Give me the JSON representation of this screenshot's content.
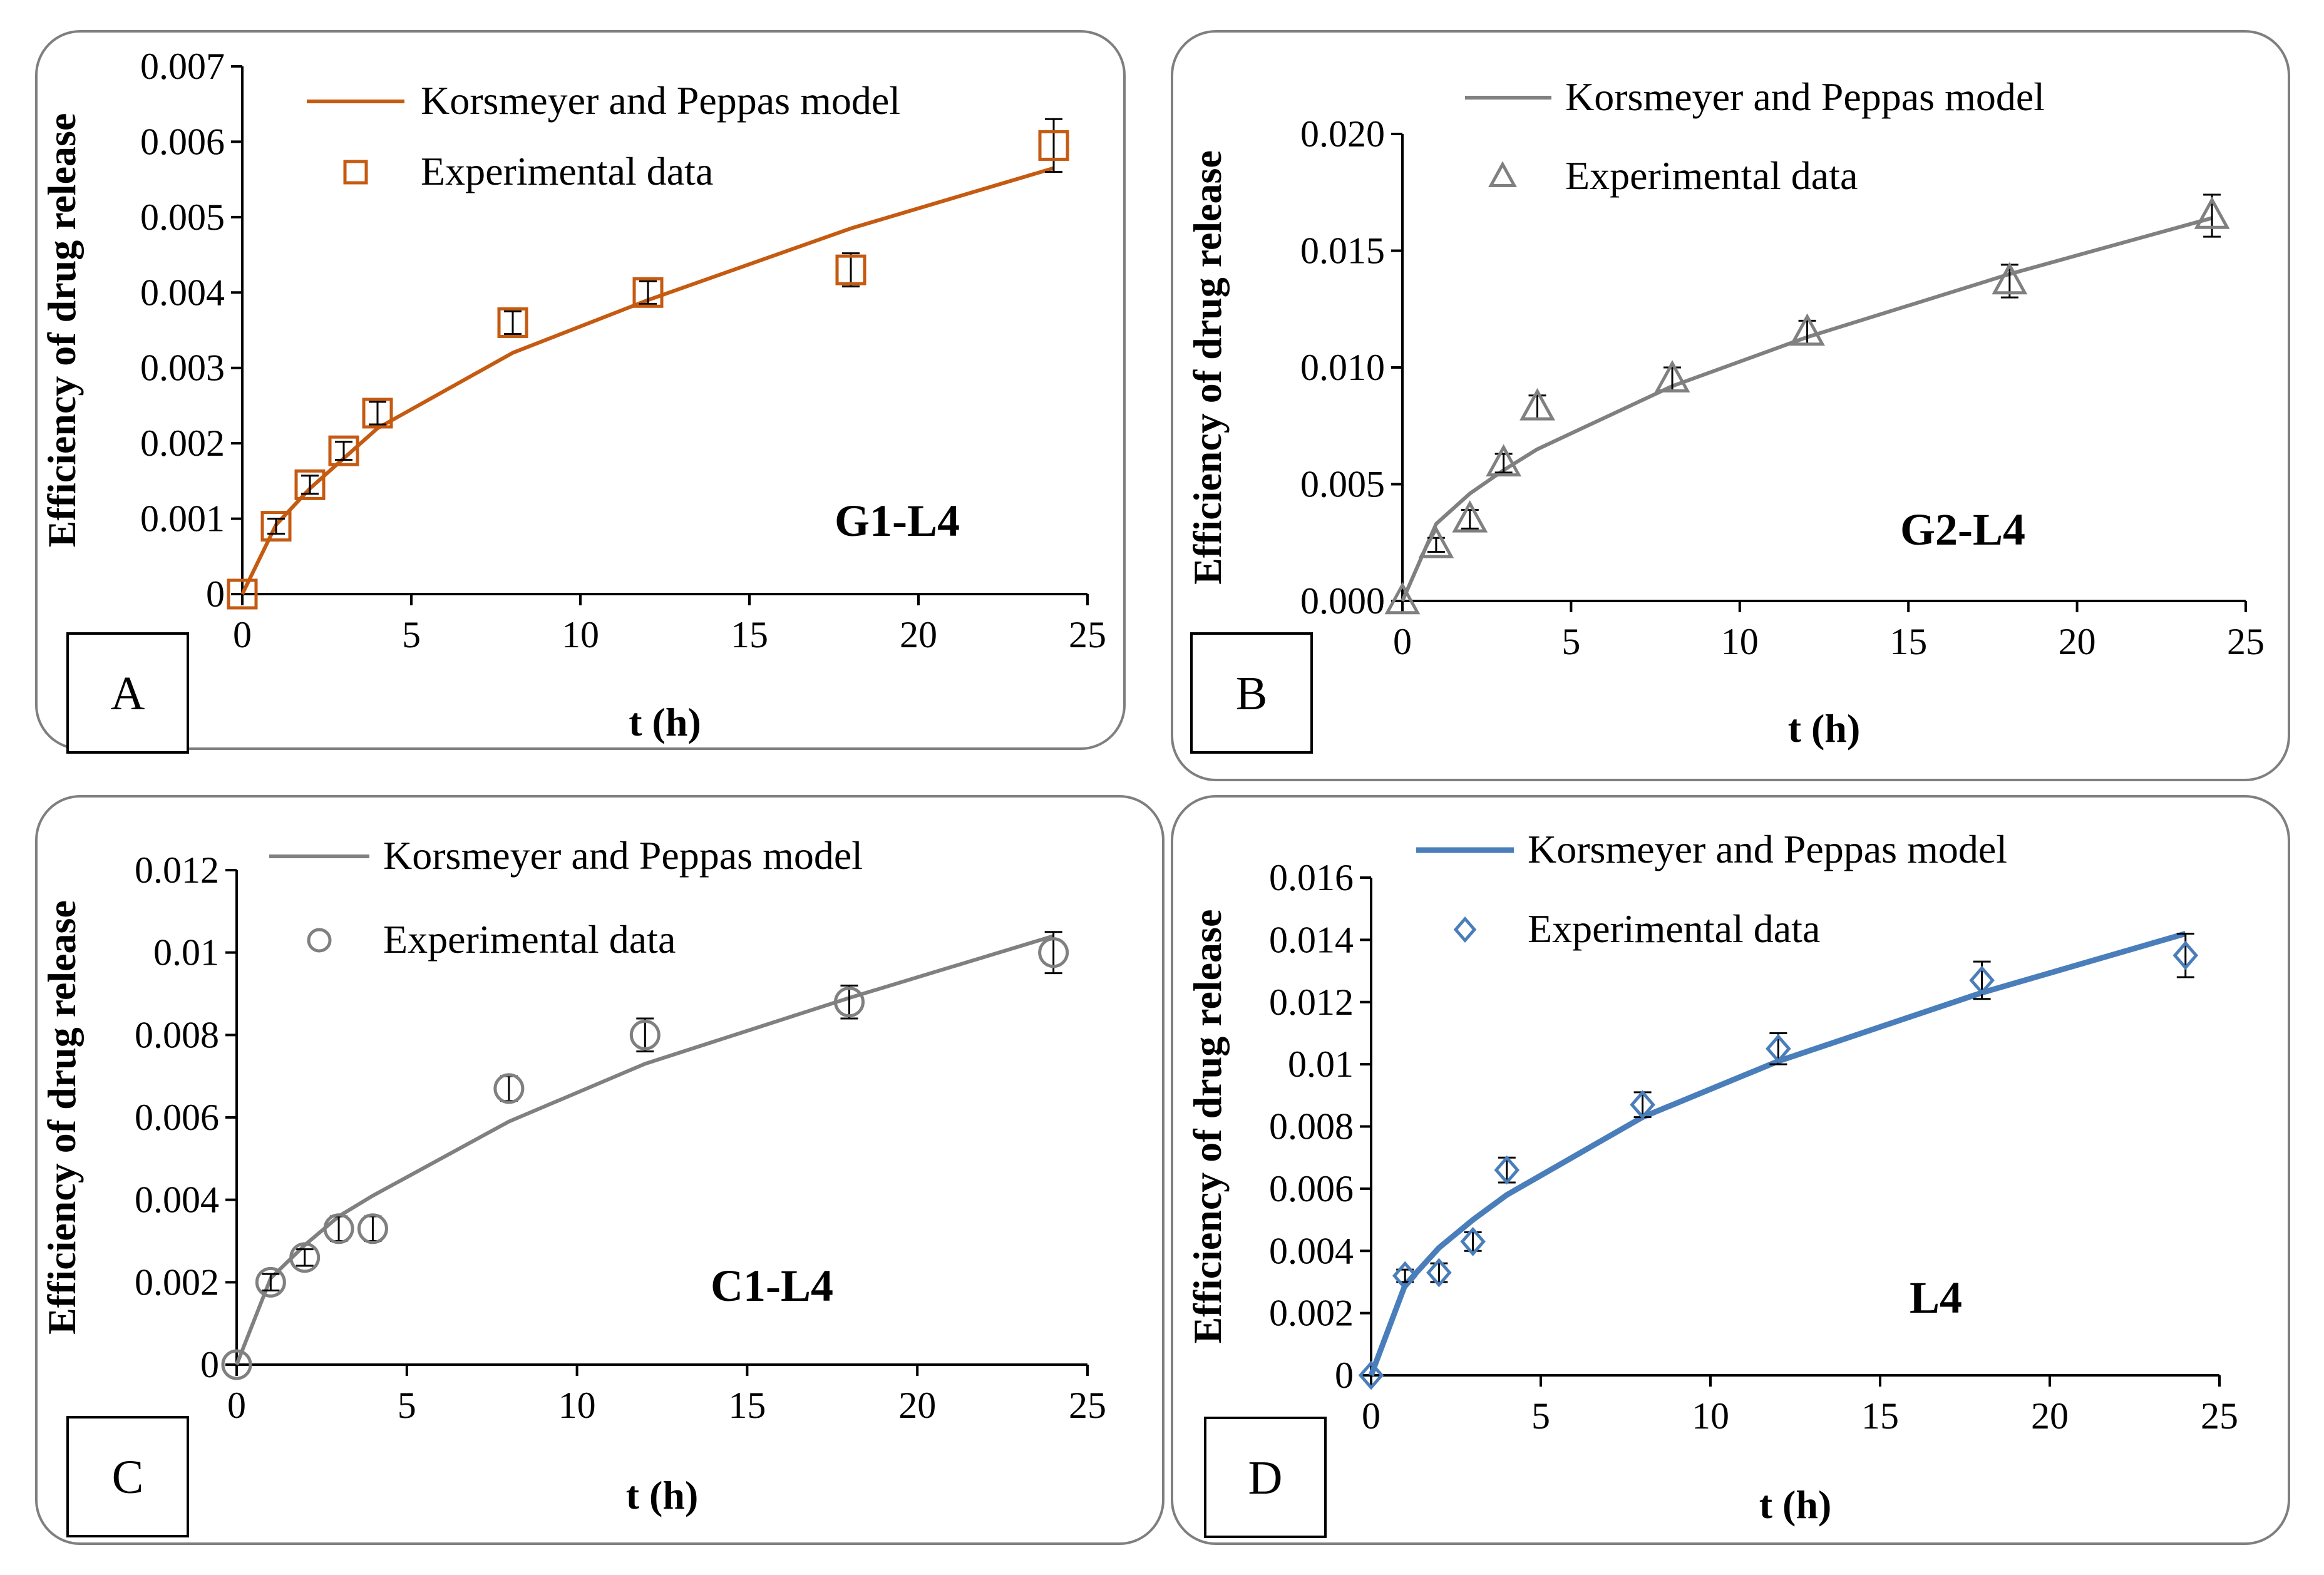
{
  "chart_data": [
    {
      "type": "line",
      "panel_label": "A",
      "sample_label": "G1-L4",
      "title": "",
      "xlabel": "t (h)",
      "ylabel": "Efficiency of drug release",
      "xlim": [
        0,
        25
      ],
      "ylim": [
        0,
        0.007
      ],
      "xticks": [
        "0",
        "5",
        "10",
        "15",
        "20",
        "25"
      ],
      "yticks": [
        "0",
        "0.001",
        "0.002",
        "0.003",
        "0.004",
        "0.005",
        "0.006",
        "0.007"
      ],
      "color": "#C55A11",
      "marker": "square",
      "legend": {
        "model": "Korsmeyer and Peppas model",
        "experimental": "Experimental data",
        "position": "top-left"
      },
      "series": [
        {
          "name": "Korsmeyer and Peppas model",
          "x": [
            0,
            1,
            2,
            3,
            4,
            8,
            12,
            18,
            24
          ],
          "values": [
            0,
            0.00092,
            0.0014,
            0.0018,
            0.0022,
            0.0032,
            0.0039,
            0.00485,
            0.00565
          ]
        },
        {
          "name": "Experimental data",
          "x": [
            0,
            1,
            2,
            3,
            4,
            8,
            12,
            18,
            24
          ],
          "values": [
            0,
            0.0009,
            0.00145,
            0.0019,
            0.0024,
            0.0036,
            0.004,
            0.0043,
            0.00595
          ],
          "error": [
            0,
            0.0001,
            0.00012,
            0.00012,
            0.00015,
            0.00015,
            0.00015,
            0.00022,
            0.00035
          ]
        }
      ]
    },
    {
      "type": "line",
      "panel_label": "B",
      "sample_label": "G2-L4",
      "title": "",
      "xlabel": "t (h)",
      "ylabel": "Efficiency of drug release",
      "xlim": [
        0,
        25
      ],
      "ylim": [
        0,
        0.02
      ],
      "xticks": [
        "0",
        "5",
        "10",
        "15",
        "20",
        "25"
      ],
      "yticks": [
        "0.000",
        "0.005",
        "0.010",
        "0.015",
        "0.020"
      ],
      "color": "#808080",
      "marker": "triangle",
      "legend": {
        "model": "Korsmeyer and Peppas model",
        "experimental": "Experimental data",
        "position": "top-left"
      },
      "series": [
        {
          "name": "Korsmeyer and Peppas model",
          "x": [
            0,
            1,
            2,
            3,
            4,
            8,
            12,
            18,
            24
          ],
          "values": [
            0,
            0.0033,
            0.0046,
            0.0056,
            0.0065,
            0.0092,
            0.0113,
            0.014,
            0.0164
          ]
        },
        {
          "name": "Experimental data",
          "x": [
            0,
            1,
            2,
            3,
            4,
            8,
            12,
            18,
            24
          ],
          "values": [
            0,
            0.0024,
            0.0035,
            0.0059,
            0.0083,
            0.0095,
            0.0115,
            0.0137,
            0.0165
          ],
          "error": [
            0,
            0.0003,
            0.0004,
            0.0004,
            0.0005,
            0.0005,
            0.0005,
            0.0007,
            0.0009
          ]
        }
      ]
    },
    {
      "type": "line",
      "panel_label": "C",
      "sample_label": "C1-L4",
      "title": "",
      "xlabel": "t (h)",
      "ylabel": "Efficiency of drug release",
      "xlim": [
        0,
        25
      ],
      "ylim": [
        0,
        0.012
      ],
      "xticks": [
        "0",
        "5",
        "10",
        "15",
        "20",
        "25"
      ],
      "yticks": [
        "0",
        "0.002",
        "0.004",
        "0.006",
        "0.008",
        "0.01",
        "0.012"
      ],
      "color": "#808080",
      "marker": "circle",
      "legend": {
        "model": "Korsmeyer and Peppas model",
        "experimental": "Experimental data",
        "position": "top-left"
      },
      "series": [
        {
          "name": "Korsmeyer and Peppas model",
          "x": [
            0,
            1,
            2,
            3,
            4,
            8,
            12,
            18,
            24
          ],
          "values": [
            0,
            0.0021,
            0.0029,
            0.0036,
            0.0041,
            0.0059,
            0.0073,
            0.0089,
            0.0104
          ]
        },
        {
          "name": "Experimental data",
          "x": [
            0,
            1,
            2,
            3,
            4,
            8,
            12,
            18,
            24
          ],
          "values": [
            0,
            0.002,
            0.0026,
            0.0033,
            0.0033,
            0.0067,
            0.008,
            0.0088,
            0.01
          ],
          "error": [
            0,
            0.0002,
            0.0002,
            0.0003,
            0.0003,
            0.0003,
            0.0004,
            0.0004,
            0.0005
          ]
        }
      ]
    },
    {
      "type": "line",
      "panel_label": "D",
      "sample_label": "L4",
      "title": "",
      "xlabel": "t (h)",
      "ylabel": "Efficiency of drug release",
      "xlim": [
        0,
        25
      ],
      "ylim": [
        0,
        0.016
      ],
      "xticks": [
        "0",
        "5",
        "10",
        "15",
        "20",
        "25"
      ],
      "yticks": [
        "0",
        "0.002",
        "0.004",
        "0.006",
        "0.008",
        "0.01",
        "0.012",
        "0.014",
        "0.016"
      ],
      "color": "#4A7EBB",
      "marker": "diamond",
      "legend": {
        "model": "Korsmeyer and Peppas model",
        "experimental": "Experimental data",
        "position": "top-left"
      },
      "series": [
        {
          "name": "Korsmeyer and Peppas model",
          "x": [
            0,
            1,
            2,
            3,
            4,
            8,
            12,
            18,
            24
          ],
          "values": [
            0,
            0.0029,
            0.0041,
            0.005,
            0.0058,
            0.0083,
            0.0101,
            0.0123,
            0.0142
          ]
        },
        {
          "name": "Experimental data",
          "x": [
            0,
            1,
            2,
            3,
            4,
            8,
            12,
            18,
            24
          ],
          "values": [
            0,
            0.0032,
            0.0033,
            0.0043,
            0.0066,
            0.0087,
            0.0105,
            0.0127,
            0.0135
          ],
          "error": [
            0,
            0.0002,
            0.0003,
            0.0003,
            0.0004,
            0.0004,
            0.0005,
            0.0006,
            0.0007
          ]
        }
      ]
    }
  ]
}
